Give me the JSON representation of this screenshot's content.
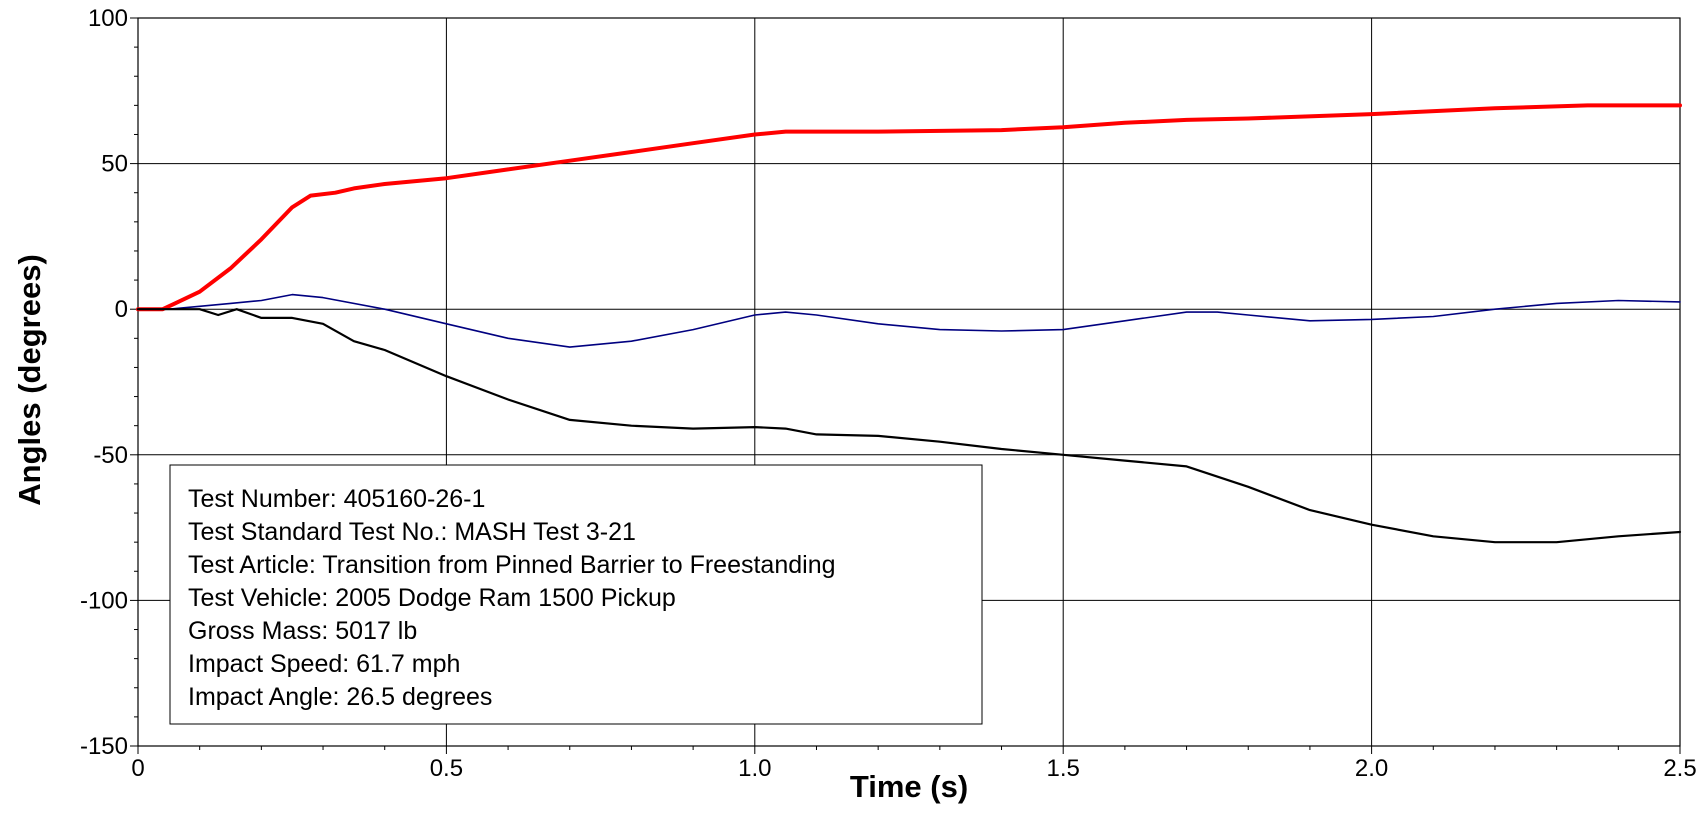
{
  "chart_data": {
    "type": "line",
    "title": "",
    "xlabel": "Time (s)",
    "ylabel": "Angles (degrees)",
    "xlim": [
      0,
      2.5
    ],
    "ylim": [
      -150,
      100
    ],
    "grid": true,
    "x_ticks": [
      "0",
      "0.5",
      "1.0",
      "1.5",
      "2.0",
      "2.5"
    ],
    "y_ticks": [
      "100",
      "50",
      "0",
      "-50",
      "-100",
      "-150"
    ],
    "series": [
      {
        "color": "#ff0000",
        "points": [
          [
            0,
            0
          ],
          [
            0.04,
            0
          ],
          [
            0.06,
            2
          ],
          [
            0.1,
            6
          ],
          [
            0.15,
            14
          ],
          [
            0.2,
            24
          ],
          [
            0.25,
            35
          ],
          [
            0.28,
            39
          ],
          [
            0.32,
            40
          ],
          [
            0.35,
            41.5
          ],
          [
            0.4,
            43
          ],
          [
            0.5,
            45
          ],
          [
            0.6,
            48
          ],
          [
            0.7,
            51
          ],
          [
            0.8,
            54
          ],
          [
            0.9,
            57
          ],
          [
            1.0,
            60
          ],
          [
            1.05,
            61
          ],
          [
            1.2,
            61
          ],
          [
            1.4,
            61.5
          ],
          [
            1.5,
            62.5
          ],
          [
            1.6,
            64
          ],
          [
            1.7,
            65
          ],
          [
            1.8,
            65.5
          ],
          [
            2.0,
            67
          ],
          [
            2.2,
            69
          ],
          [
            2.35,
            70
          ],
          [
            2.5,
            70
          ]
        ]
      },
      {
        "color": "#000080",
        "points": [
          [
            0,
            0
          ],
          [
            0.05,
            0
          ],
          [
            0.1,
            1
          ],
          [
            0.15,
            2
          ],
          [
            0.2,
            3
          ],
          [
            0.25,
            5
          ],
          [
            0.3,
            4
          ],
          [
            0.4,
            0
          ],
          [
            0.5,
            -5
          ],
          [
            0.6,
            -10
          ],
          [
            0.7,
            -13
          ],
          [
            0.8,
            -11
          ],
          [
            0.9,
            -7
          ],
          [
            1.0,
            -2
          ],
          [
            1.05,
            -1
          ],
          [
            1.1,
            -2
          ],
          [
            1.2,
            -5
          ],
          [
            1.3,
            -7
          ],
          [
            1.4,
            -7.5
          ],
          [
            1.5,
            -7
          ],
          [
            1.6,
            -4
          ],
          [
            1.7,
            -1
          ],
          [
            1.75,
            -1
          ],
          [
            1.8,
            -2
          ],
          [
            1.9,
            -4
          ],
          [
            2.0,
            -3.5
          ],
          [
            2.1,
            -2.5
          ],
          [
            2.2,
            0
          ],
          [
            2.3,
            2
          ],
          [
            2.4,
            3
          ],
          [
            2.5,
            2.5
          ]
        ]
      },
      {
        "color": "#000000",
        "points": [
          [
            0,
            0
          ],
          [
            0.05,
            0
          ],
          [
            0.1,
            0
          ],
          [
            0.13,
            -2
          ],
          [
            0.16,
            0
          ],
          [
            0.2,
            -3
          ],
          [
            0.25,
            -3
          ],
          [
            0.3,
            -5
          ],
          [
            0.35,
            -11
          ],
          [
            0.4,
            -14
          ],
          [
            0.5,
            -23
          ],
          [
            0.6,
            -31
          ],
          [
            0.7,
            -38
          ],
          [
            0.8,
            -40
          ],
          [
            0.9,
            -41
          ],
          [
            1.0,
            -40.5
          ],
          [
            1.05,
            -41
          ],
          [
            1.1,
            -43
          ],
          [
            1.2,
            -43.5
          ],
          [
            1.3,
            -45.5
          ],
          [
            1.4,
            -48
          ],
          [
            1.5,
            -50
          ],
          [
            1.6,
            -52
          ],
          [
            1.7,
            -54
          ],
          [
            1.8,
            -61
          ],
          [
            1.9,
            -69
          ],
          [
            2.0,
            -74
          ],
          [
            2.1,
            -78
          ],
          [
            2.2,
            -80
          ],
          [
            2.3,
            -80
          ],
          [
            2.4,
            -78
          ],
          [
            2.5,
            -76.5
          ]
        ]
      }
    ],
    "info_box": {
      "lines": [
        "Test Number: 405160-26-1",
        "Test Standard Test No.: MASH Test 3-21",
        "Test Article: Transition from Pinned Barrier to Freestanding",
        "Test Vehicle: 2005 Dodge Ram 1500 Pickup",
        "Gross Mass: 5017 lb",
        "Impact Speed: 61.7 mph",
        "Impact Angle: 26.5 degrees"
      ]
    }
  }
}
